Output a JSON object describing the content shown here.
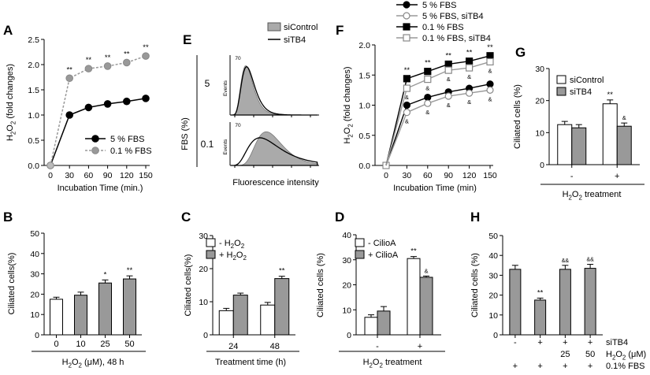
{
  "figure": {
    "panels": [
      {
        "id": "A",
        "type": "line"
      },
      {
        "id": "E",
        "type": "histogram-overlay"
      },
      {
        "id": "F",
        "type": "line"
      },
      {
        "id": "G",
        "type": "bar"
      },
      {
        "id": "B",
        "type": "bar"
      },
      {
        "id": "C",
        "type": "bar"
      },
      {
        "id": "D",
        "type": "bar"
      },
      {
        "id": "H",
        "type": "bar"
      }
    ]
  },
  "chart_data": [
    {
      "panel": "A",
      "type": "line",
      "xlabel": "Incubation Time (min.)",
      "ylabel": "H2O2 (fold changes)",
      "categories": [
        "0",
        "30",
        "60",
        "90",
        "120",
        "150"
      ],
      "yticks": [
        "0.0",
        "0.5",
        "1.0",
        "1.5",
        "2.0",
        "2.5"
      ],
      "ylim": [
        0,
        2.5
      ],
      "series": [
        {
          "name": "5 % FBS",
          "values": [
            0,
            1.0,
            1.15,
            1.22,
            1.27,
            1.33
          ],
          "color": "#000000",
          "dashed": false
        },
        {
          "name": "0.1 % FBS",
          "values": [
            0,
            1.73,
            1.92,
            1.97,
            2.04,
            2.17
          ],
          "color": "#999999",
          "dashed": true,
          "marks": [
            "",
            "**",
            "**",
            "**",
            "**",
            "**"
          ]
        }
      ]
    },
    {
      "panel": "E",
      "type": "histogram-overlay",
      "xlabel": "Fluorescence intensity",
      "ylabel": "FBS (%)",
      "rows": [
        {
          "label": "5",
          "ymax": "70"
        },
        {
          "label": "0.1",
          "ymax": "70"
        }
      ],
      "axis_label": "Events",
      "legend": [
        {
          "name": "siControl",
          "color": "#aaaaaa"
        },
        {
          "name": "siTB4",
          "color": "#000000"
        }
      ]
    },
    {
      "panel": "F",
      "type": "line",
      "xlabel": "Incubation Time (min)",
      "ylabel": "H2O2 (fold changes)",
      "categories": [
        "0",
        "30",
        "60",
        "90",
        "120",
        "150"
      ],
      "yticks": [
        "0.0",
        "0.5",
        "1.0",
        "1.5",
        "2.0"
      ],
      "ylim": [
        0,
        2.0
      ],
      "series": [
        {
          "name": "5 % FBS",
          "values": [
            0,
            1.0,
            1.13,
            1.22,
            1.28,
            1.35
          ],
          "marker": "circle",
          "filled": true,
          "marks": [
            "",
            "",
            "",
            "",
            "",
            ""
          ]
        },
        {
          "name": "5 % FBS, siTB4",
          "values": [
            0,
            0.88,
            1.03,
            1.15,
            1.2,
            1.25
          ],
          "marker": "circle",
          "filled": false,
          "marks": [
            "",
            "&",
            "&",
            "&",
            "&",
            "&"
          ]
        },
        {
          "name": "0.1 % FBS",
          "values": [
            0,
            1.44,
            1.56,
            1.68,
            1.73,
            1.82
          ],
          "marker": "square",
          "filled": true,
          "marks": [
            "",
            "**",
            "**",
            "**",
            "**",
            "**"
          ]
        },
        {
          "name": "0.1 % FBS, siTB4",
          "values": [
            0,
            1.28,
            1.43,
            1.58,
            1.62,
            1.72
          ],
          "marker": "square",
          "filled": false,
          "marks": [
            "",
            "&",
            "&",
            "&",
            "&",
            "&"
          ]
        }
      ]
    },
    {
      "panel": "G",
      "type": "bar",
      "ylabel": "Ciliated cells (%)",
      "xlabel": "H2O2 treatment",
      "categories": [
        "-",
        "+"
      ],
      "yticks": [
        "0",
        "10",
        "20",
        "30"
      ],
      "ylim": [
        0,
        30
      ],
      "series": [
        {
          "name": "siControl",
          "values": [
            12.5,
            19.0
          ],
          "errors": [
            1.0,
            1.2
          ],
          "color": "#ffffff",
          "marks": [
            "",
            "**"
          ]
        },
        {
          "name": "siTB4",
          "values": [
            11.5,
            12.0
          ],
          "errors": [
            1.0,
            1.0
          ],
          "color": "#999999",
          "marks": [
            "",
            "&"
          ]
        }
      ]
    },
    {
      "panel": "B",
      "type": "bar",
      "ylabel": "Ciliated cells(%)",
      "xlabel": "H2O2 (μM), 48 h",
      "categories": [
        "0",
        "10",
        "25",
        "50"
      ],
      "yticks": [
        "0",
        "10",
        "20",
        "30",
        "40",
        "50"
      ],
      "ylim": [
        0,
        50
      ],
      "values": [
        17.5,
        19.5,
        25.5,
        27.5
      ],
      "errors": [
        1.0,
        1.5,
        1.5,
        1.5
      ],
      "colors": [
        "#ffffff",
        "#999999",
        "#999999",
        "#999999"
      ],
      "marks": [
        "",
        "",
        "*",
        "**"
      ]
    },
    {
      "panel": "C",
      "type": "bar",
      "ylabel": "Ciliated cells(%)",
      "xlabel": "Treatment time (h)",
      "categories": [
        "24",
        "48"
      ],
      "yticks": [
        "0",
        "10",
        "20",
        "30"
      ],
      "ylim": [
        0,
        30
      ],
      "series": [
        {
          "name": "- H2O2",
          "values": [
            7.3,
            9.0
          ],
          "errors": [
            0.7,
            0.8
          ],
          "color": "#ffffff",
          "marks": [
            "",
            ""
          ]
        },
        {
          "name": "+ H2O2",
          "values": [
            12.0,
            17.0
          ],
          "errors": [
            0.6,
            0.7
          ],
          "color": "#999999",
          "marks": [
            "",
            "**"
          ]
        }
      ]
    },
    {
      "panel": "D",
      "type": "bar",
      "ylabel": "Ciliated cells (%)",
      "xlabel": "H2O2 treatment",
      "categories": [
        "-",
        "+"
      ],
      "yticks": [
        "0",
        "10",
        "20",
        "30",
        "40"
      ],
      "ylim": [
        0,
        40
      ],
      "series": [
        {
          "name": "- CilioA",
          "values": [
            7.0,
            30.5
          ],
          "errors": [
            1.0,
            0.8
          ],
          "color": "#ffffff",
          "marks": [
            "",
            "**"
          ]
        },
        {
          "name": "+ CilioA",
          "values": [
            9.5,
            23.0
          ],
          "errors": [
            1.8,
            0.5
          ],
          "color": "#999999",
          "marks": [
            "",
            "&"
          ]
        }
      ]
    },
    {
      "panel": "H",
      "type": "bar",
      "ylabel": "Ciliated cells (%)",
      "yticks": [
        "0",
        "10",
        "20",
        "30",
        "40",
        "50"
      ],
      "ylim": [
        0,
        50
      ],
      "values": [
        33.0,
        17.5,
        33.0,
        33.5
      ],
      "errors": [
        2.0,
        1.0,
        2.0,
        2.0
      ],
      "colors": [
        "#999999",
        "#999999",
        "#999999",
        "#999999"
      ],
      "marks": [
        "",
        "**",
        "&&",
        "&&"
      ],
      "condition_rows": [
        {
          "label": "siTB4",
          "values": [
            "-",
            "+",
            "+",
            "+"
          ]
        },
        {
          "label": "H2O2 (μM)",
          "values": [
            "",
            "",
            "25",
            "50"
          ]
        },
        {
          "label": "0.1% FBS",
          "values": [
            "+",
            "+",
            "+",
            "+"
          ]
        }
      ]
    }
  ]
}
